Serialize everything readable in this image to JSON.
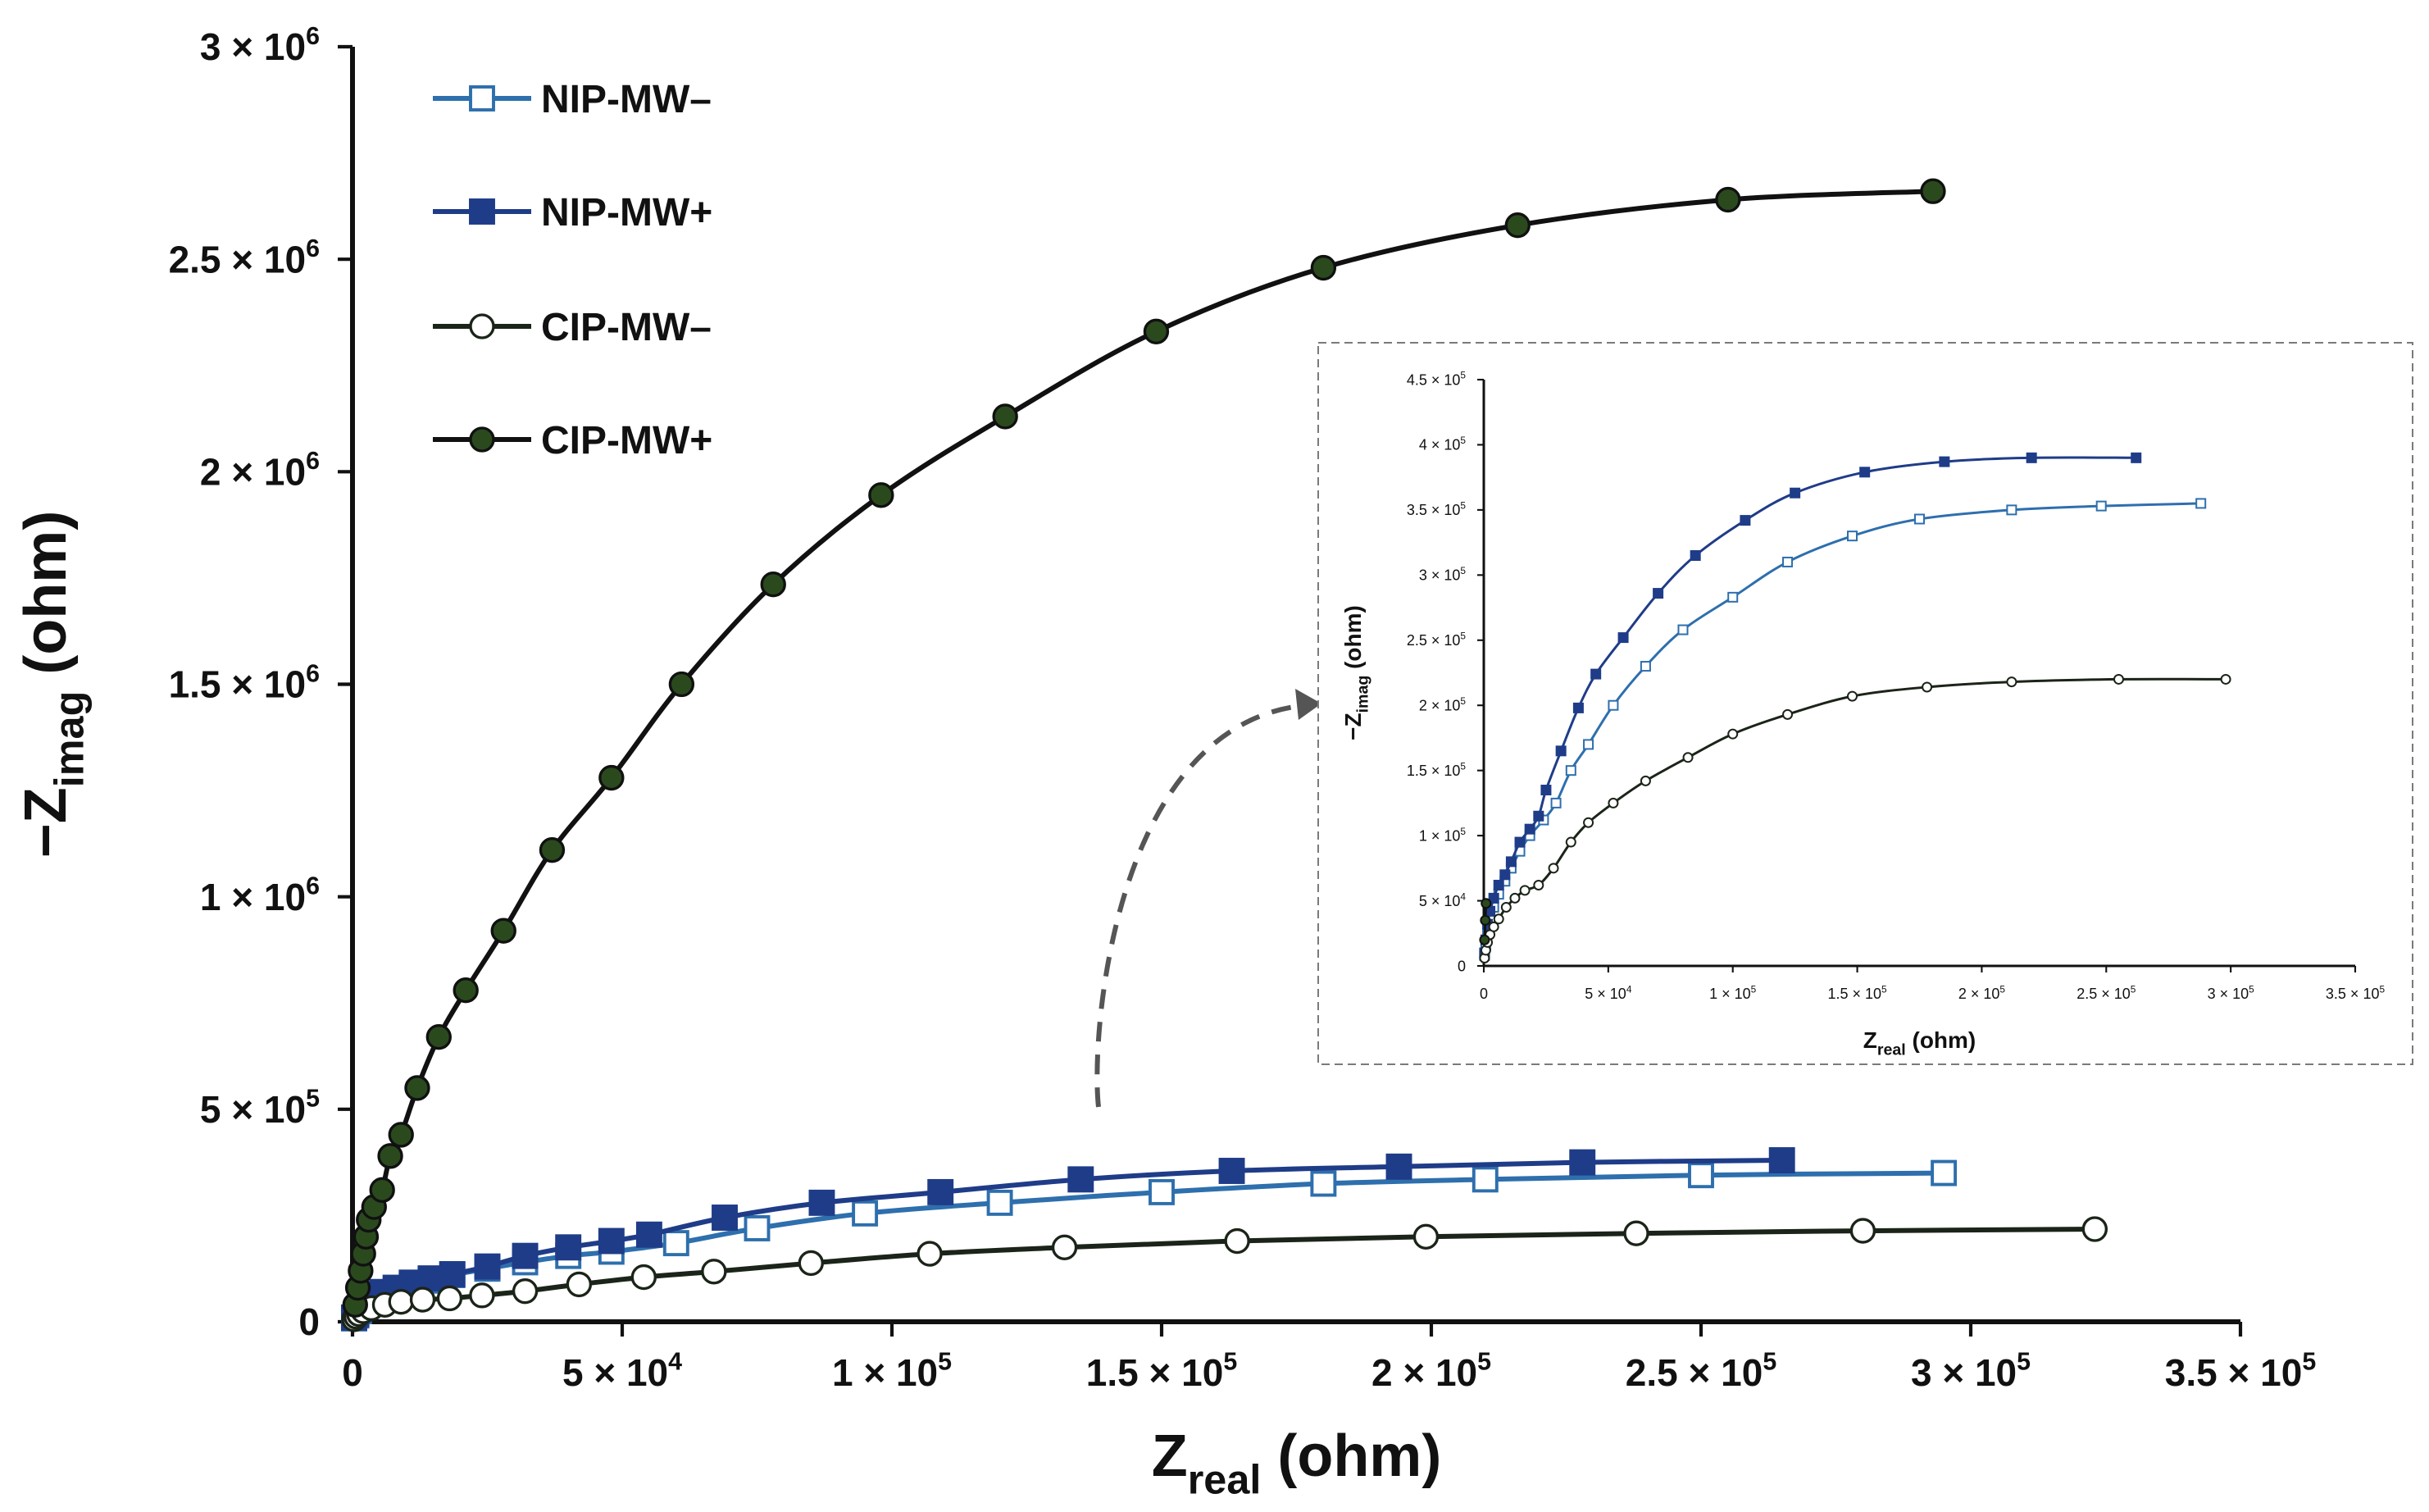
{
  "chart_data": [
    {
      "id": "main",
      "type": "scatter",
      "xlabel": {
        "main": "Z",
        "sub": "real",
        "unit": " (ohm)"
      },
      "ylabel": {
        "main": "−Z",
        "sub": "imag",
        "unit": " (ohm)"
      },
      "xlim": [
        0,
        350000
      ],
      "ylim": [
        0,
        3000000
      ],
      "x_ticks": [
        {
          "value": 0,
          "label": "0",
          "exp": ""
        },
        {
          "value": 50000,
          "label": "5 × 10",
          "exp": "4"
        },
        {
          "value": 100000,
          "label": "1 × 10",
          "exp": "5"
        },
        {
          "value": 150000,
          "label": "1.5 × 10",
          "exp": "5"
        },
        {
          "value": 200000,
          "label": "2 × 10",
          "exp": "5"
        },
        {
          "value": 250000,
          "label": "2.5 × 10",
          "exp": "5"
        },
        {
          "value": 300000,
          "label": "3 × 10",
          "exp": "5"
        },
        {
          "value": 350000,
          "label": "3.5 × 10",
          "exp": "5"
        }
      ],
      "y_ticks": [
        {
          "value": 0,
          "label": "0",
          "exp": ""
        },
        {
          "value": 500000,
          "label": "5 × 10",
          "exp": "5"
        },
        {
          "value": 1000000,
          "label": "1 × 10",
          "exp": "6"
        },
        {
          "value": 1500000,
          "label": "1.5 × 10",
          "exp": "6"
        },
        {
          "value": 2000000,
          "label": "2 × 10",
          "exp": "6"
        },
        {
          "value": 2500000,
          "label": "2.5 × 10",
          "exp": "6"
        },
        {
          "value": 3000000,
          "label": "3 × 10",
          "exp": "6"
        }
      ],
      "legend": {
        "position": "top-left",
        "entries": [
          "NIP-MW–",
          "NIP-MW+",
          "CIP-MW–",
          "CIP-MW+"
        ]
      },
      "series": [
        {
          "name": "NIP-MW–",
          "color": "#2e6fad",
          "marker": "square-open",
          "points": [
            [
              300,
              8000
            ],
            [
              700,
              15000
            ],
            [
              1200,
              25000
            ],
            [
              2000,
              35000
            ],
            [
              3500,
              50000
            ],
            [
              5500,
              62000
            ],
            [
              8000,
              72000
            ],
            [
              11000,
              85000
            ],
            [
              14500,
              97000
            ],
            [
              18500,
              110000
            ],
            [
              25000,
              125000
            ],
            [
              32000,
              140000
            ],
            [
              40000,
              155000
            ],
            [
              48000,
              165000
            ],
            [
              60000,
              185000
            ],
            [
              75000,
              220000
            ],
            [
              95000,
              255000
            ],
            [
              120000,
              280000
            ],
            [
              150000,
              305000
            ],
            [
              180000,
              325000
            ],
            [
              210000,
              335000
            ],
            [
              250000,
              345000
            ],
            [
              295000,
              350000
            ]
          ]
        },
        {
          "name": "NIP-MW+",
          "color": "#1f3c88",
          "marker": "square-filled",
          "points": [
            [
              300,
              10000
            ],
            [
              700,
              18000
            ],
            [
              1200,
              30000
            ],
            [
              2000,
              45000
            ],
            [
              3500,
              58000
            ],
            [
              5500,
              70000
            ],
            [
              8000,
              80000
            ],
            [
              11000,
              92000
            ],
            [
              14500,
              102000
            ],
            [
              18500,
              112000
            ],
            [
              25000,
              130000
            ],
            [
              32000,
              155000
            ],
            [
              40000,
              175000
            ],
            [
              48000,
              190000
            ],
            [
              55000,
              205000
            ],
            [
              69000,
              245000
            ],
            [
              87000,
              280000
            ],
            [
              109000,
              305000
            ],
            [
              135000,
              335000
            ],
            [
              163000,
              355000
            ],
            [
              194000,
              365000
            ],
            [
              228000,
              375000
            ],
            [
              265000,
              380000
            ]
          ]
        },
        {
          "name": "CIP-MW–",
          "color": "#1b2418",
          "marker": "circle-open",
          "points": [
            [
              300,
              6000
            ],
            [
              700,
              12000
            ],
            [
              1200,
              18000
            ],
            [
              2000,
              25000
            ],
            [
              3500,
              32000
            ],
            [
              6000,
              40000
            ],
            [
              9000,
              47000
            ],
            [
              13000,
              52000
            ],
            [
              18000,
              55000
            ],
            [
              24000,
              62000
            ],
            [
              32000,
              72000
            ],
            [
              42000,
              88000
            ],
            [
              54000,
              105000
            ],
            [
              67000,
              118000
            ],
            [
              85000,
              138000
            ],
            [
              107000,
              160000
            ],
            [
              132000,
              175000
            ],
            [
              164000,
              190000
            ],
            [
              199000,
              200000
            ],
            [
              238000,
              208000
            ],
            [
              280000,
              214000
            ],
            [
              323000,
              218000
            ]
          ]
        },
        {
          "name": "CIP-MW+",
          "color": "#2a4a1e",
          "marker": "circle-filled",
          "points": [
            [
              500,
              40000
            ],
            [
              1000,
              80000
            ],
            [
              1500,
              120000
            ],
            [
              2000,
              160000
            ],
            [
              2500,
              200000
            ],
            [
              3000,
              240000
            ],
            [
              4000,
              270000
            ],
            [
              5500,
              310000
            ],
            [
              7000,
              390000
            ],
            [
              9000,
              440000
            ],
            [
              12000,
              550000
            ],
            [
              16000,
              670000
            ],
            [
              21000,
              780000
            ],
            [
              28000,
              920000
            ],
            [
              37000,
              1110000
            ],
            [
              48000,
              1280000
            ],
            [
              61000,
              1500000
            ],
            [
              78000,
              1735000
            ],
            [
              98000,
              1945000
            ],
            [
              121000,
              2130000
            ],
            [
              149000,
              2330000
            ],
            [
              180000,
              2480000
            ],
            [
              216000,
              2580000
            ],
            [
              255000,
              2640000
            ],
            [
              293000,
              2660000
            ]
          ]
        }
      ]
    },
    {
      "id": "inset",
      "type": "scatter",
      "xlabel": {
        "main": "Z",
        "sub": "real",
        "unit": " (ohm)"
      },
      "ylabel": {
        "main": "−Z",
        "sub": "imag",
        "unit": " (ohm)"
      },
      "xlim": [
        0,
        350000
      ],
      "ylim": [
        0,
        450000
      ],
      "x_ticks": [
        {
          "value": 0,
          "label": "0",
          "exp": ""
        },
        {
          "value": 50000,
          "label": "5 × 10",
          "exp": "4"
        },
        {
          "value": 100000,
          "label": "1 × 10",
          "exp": "5"
        },
        {
          "value": 150000,
          "label": "1.5 × 10",
          "exp": "5"
        },
        {
          "value": 200000,
          "label": "2 × 10",
          "exp": "5"
        },
        {
          "value": 250000,
          "label": "2.5 × 10",
          "exp": "5"
        },
        {
          "value": 300000,
          "label": "3 × 10",
          "exp": "5"
        },
        {
          "value": 350000,
          "label": "3.5 × 10",
          "exp": "5"
        }
      ],
      "y_ticks": [
        {
          "value": 0,
          "label": "0",
          "exp": ""
        },
        {
          "value": 50000,
          "label": "5 × 10",
          "exp": "4"
        },
        {
          "value": 100000,
          "label": "1 × 10",
          "exp": "5"
        },
        {
          "value": 150000,
          "label": "1.5 × 10",
          "exp": "5"
        },
        {
          "value": 200000,
          "label": "2 × 10",
          "exp": "5"
        },
        {
          "value": 250000,
          "label": "2.5 × 10",
          "exp": "5"
        },
        {
          "value": 300000,
          "label": "3 × 10",
          "exp": "5"
        },
        {
          "value": 350000,
          "label": "3.5 × 10",
          "exp": "5"
        },
        {
          "value": 400000,
          "label": "4 × 10",
          "exp": "5"
        },
        {
          "value": 450000,
          "label": "4.5 × 10",
          "exp": "5"
        }
      ],
      "series": [
        {
          "name": "NIP-MW–",
          "color": "#2e6fad",
          "marker": "square-open",
          "points": [
            [
              300,
              8000
            ],
            [
              800,
              16000
            ],
            [
              1500,
              25000
            ],
            [
              2500,
              35000
            ],
            [
              4000,
              45000
            ],
            [
              6000,
              55000
            ],
            [
              8500,
              65000
            ],
            [
              11000,
              75000
            ],
            [
              14500,
              88000
            ],
            [
              18500,
              100000
            ],
            [
              24000,
              112000
            ],
            [
              29000,
              125000
            ],
            [
              35000,
              150000
            ],
            [
              42000,
              170000
            ],
            [
              52000,
              200000
            ],
            [
              65000,
              230000
            ],
            [
              80000,
              258000
            ],
            [
              100000,
              283000
            ],
            [
              122000,
              310000
            ],
            [
              148000,
              330000
            ],
            [
              175000,
              343000
            ],
            [
              212000,
              350000
            ],
            [
              248000,
              353000
            ],
            [
              288000,
              355000
            ]
          ]
        },
        {
          "name": "NIP-MW+",
          "color": "#1f3c88",
          "marker": "square-filled",
          "points": [
            [
              300,
              10000
            ],
            [
              800,
              20000
            ],
            [
              1500,
              32000
            ],
            [
              2500,
              42000
            ],
            [
              4000,
              52000
            ],
            [
              6000,
              62000
            ],
            [
              8500,
              70000
            ],
            [
              11000,
              80000
            ],
            [
              14500,
              95000
            ],
            [
              18500,
              105000
            ],
            [
              22000,
              115000
            ],
            [
              25000,
              135000
            ],
            [
              31000,
              165000
            ],
            [
              38000,
              198000
            ],
            [
              45000,
              224000
            ],
            [
              56000,
              252000
            ],
            [
              70000,
              286000
            ],
            [
              85000,
              315000
            ],
            [
              105000,
              342000
            ],
            [
              125000,
              363000
            ],
            [
              153000,
              379000
            ],
            [
              185000,
              387000
            ],
            [
              220000,
              390000
            ],
            [
              262000,
              390000
            ]
          ]
        },
        {
          "name": "CIP-MW–",
          "color": "#1b2418",
          "marker": "circle-open",
          "points": [
            [
              300,
              6000
            ],
            [
              800,
              12000
            ],
            [
              1500,
              18000
            ],
            [
              2500,
              24000
            ],
            [
              4000,
              30000
            ],
            [
              6000,
              36000
            ],
            [
              9000,
              45000
            ],
            [
              12500,
              52000
            ],
            [
              16500,
              58000
            ],
            [
              22000,
              62000
            ],
            [
              28000,
              75000
            ],
            [
              35000,
              95000
            ],
            [
              42000,
              110000
            ],
            [
              52000,
              125000
            ],
            [
              65000,
              142000
            ],
            [
              82000,
              160000
            ],
            [
              100000,
              178000
            ],
            [
              122000,
              193000
            ],
            [
              148000,
              207000
            ],
            [
              178000,
              214000
            ],
            [
              212000,
              218000
            ],
            [
              255000,
              220000
            ],
            [
              298000,
              220000
            ]
          ]
        },
        {
          "name": "CIP-MW+",
          "color": "#2a4a1e",
          "marker": "circle-filled",
          "points": [
            [
              300,
              20000
            ],
            [
              600,
              35000
            ],
            [
              900,
              48000
            ]
          ]
        }
      ]
    }
  ]
}
